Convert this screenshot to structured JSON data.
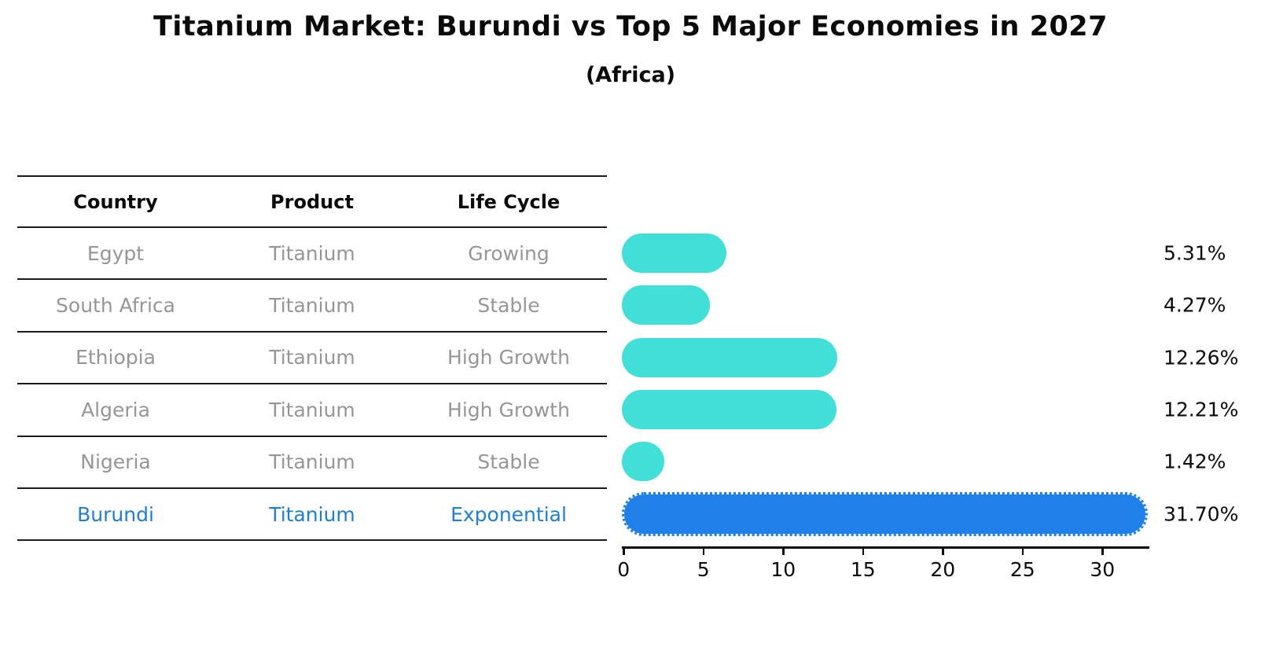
{
  "title": "Titanium Market: Burundi vs Top 5 Major Economies in 2027",
  "subtitle": "(Africa)",
  "table": {
    "headers": [
      "Country",
      "Product",
      "Life Cycle"
    ],
    "rows": [
      {
        "country": "Egypt",
        "product": "Titanium",
        "life_cycle": "Growing",
        "highlight": false
      },
      {
        "country": "South Africa",
        "product": "Titanium",
        "life_cycle": "Stable",
        "highlight": false
      },
      {
        "country": "Ethiopia",
        "product": "Titanium",
        "life_cycle": "High Growth",
        "highlight": false
      },
      {
        "country": "Algeria",
        "product": "Titanium",
        "life_cycle": "High Growth",
        "highlight": false
      },
      {
        "country": "Nigeria",
        "product": "Titanium",
        "life_cycle": "Stable",
        "highlight": false
      },
      {
        "country": "Burundi",
        "product": "Titanium",
        "life_cycle": "Exponential",
        "highlight": true
      }
    ]
  },
  "chart_data": {
    "type": "bar",
    "orientation": "horizontal",
    "title": "Titanium Market: Burundi vs Top 5 Major Economies in 2027",
    "subtitle": "(Africa)",
    "categories": [
      "Egypt",
      "South Africa",
      "Ethiopia",
      "Algeria",
      "Nigeria",
      "Burundi"
    ],
    "values": [
      5.31,
      4.27,
      12.26,
      12.21,
      1.42,
      31.7
    ],
    "value_labels": [
      "5.31%",
      "4.27%",
      "12.26%",
      "12.21%",
      "1.42%",
      "31.70%"
    ],
    "x_ticks": [
      "0",
      "5",
      "10",
      "15",
      "20",
      "25",
      "30"
    ],
    "xlim": [
      0,
      33
    ],
    "grid": false,
    "legend": false,
    "highlight_index": 5,
    "bar_color": "#40E0D8",
    "highlight_bar_color": "#1E80E8",
    "highlight_text_color": "#1F7ED6",
    "row_text_color": "#969696",
    "axis_color": "#0A0A0A"
  }
}
